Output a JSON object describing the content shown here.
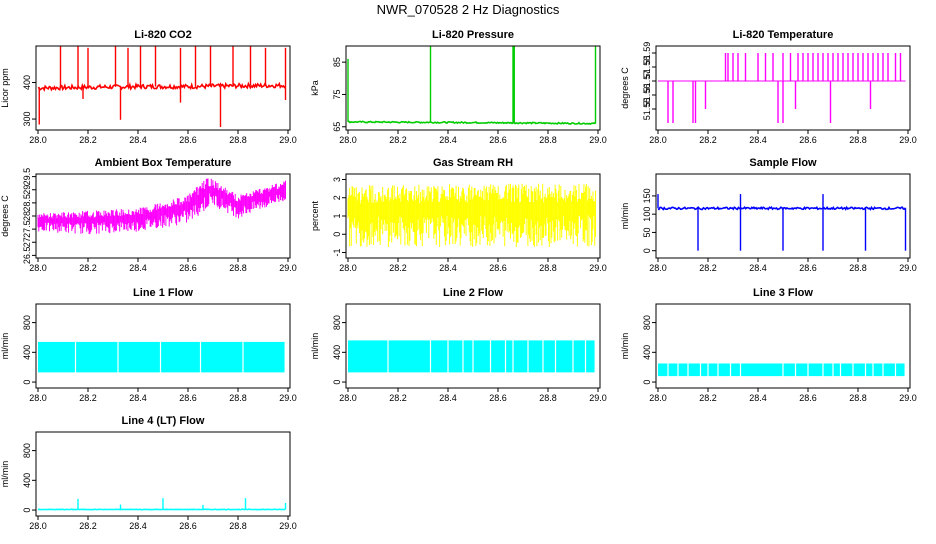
{
  "title": "NWR_070528  2 Hz Diagnostics",
  "chart_data": [
    {
      "type": "line",
      "title": "Li-820 CO2",
      "ylabel": "Licor ppm",
      "color": "#ff0000",
      "xlim": [
        28.0,
        29.0
      ],
      "ylim": [
        270,
        500
      ],
      "xticks": [
        "28.0",
        "28.2",
        "28.4",
        "28.6",
        "28.8",
        "29.0"
      ],
      "yticks": [
        300,
        400
      ],
      "baseline": [
        [
          28.0,
          385
        ],
        [
          28.2,
          387
        ],
        [
          28.4,
          389
        ],
        [
          28.6,
          389
        ],
        [
          28.8,
          391
        ],
        [
          28.99,
          392
        ]
      ],
      "noise": 6,
      "spikes": [
        [
          28.09,
          500
        ],
        [
          28.16,
          500
        ],
        [
          28.2,
          495
        ],
        [
          28.31,
          500
        ],
        [
          28.36,
          495
        ],
        [
          28.41,
          500
        ],
        [
          28.47,
          500
        ],
        [
          28.57,
          495
        ],
        [
          28.63,
          500
        ],
        [
          28.69,
          500
        ],
        [
          28.78,
          500
        ],
        [
          28.85,
          500
        ],
        [
          28.91,
          495
        ],
        [
          28.99,
          495
        ],
        [
          28.005,
          285
        ],
        [
          28.33,
          298
        ],
        [
          28.18,
          355
        ],
        [
          28.73,
          278
        ],
        [
          28.57,
          345
        ],
        [
          28.99,
          352
        ]
      ]
    },
    {
      "type": "line",
      "title": "Li-820 Pressure",
      "ylabel": "kPa",
      "color": "#00cc00",
      "xlim": [
        28.0,
        29.0
      ],
      "ylim": [
        64,
        90
      ],
      "xticks": [
        "28.0",
        "28.2",
        "28.4",
        "28.6",
        "28.8",
        "29.0"
      ],
      "yticks": [
        65,
        75,
        85
      ],
      "baseline": [
        [
          28.0,
          66.5
        ],
        [
          28.5,
          66.3
        ],
        [
          29.0,
          66.0
        ]
      ],
      "noise": 0.2,
      "spikes": [
        [
          28.0,
          86
        ],
        [
          28.33,
          90
        ],
        [
          28.66,
          90
        ],
        [
          28.665,
          90
        ],
        [
          28.99,
          90
        ]
      ]
    },
    {
      "type": "step",
      "title": "Li-820 Temperature",
      "ylabel": "degrees C",
      "color": "#ff00ff",
      "xlim": [
        28.0,
        29.0
      ],
      "ylim": [
        51.535,
        51.595
      ],
      "xticks": [
        "28.0",
        "28.2",
        "28.4",
        "28.6",
        "28.8",
        "29.0"
      ],
      "yticks": [
        51.55,
        51.56,
        51.57,
        51.58,
        51.59
      ],
      "ytickfmt": 2,
      "baseline": [
        [
          28.0,
          51.57
        ],
        [
          29.0,
          51.57
        ]
      ],
      "noise": 0,
      "spikes": [
        [
          28.04,
          51.54
        ],
        [
          28.06,
          51.54
        ],
        [
          28.14,
          51.54
        ],
        [
          28.15,
          51.54
        ],
        [
          28.19,
          51.55
        ],
        [
          28.27,
          51.59
        ],
        [
          28.28,
          51.59
        ],
        [
          28.3,
          51.59
        ],
        [
          28.32,
          51.59
        ],
        [
          28.35,
          51.59
        ],
        [
          28.4,
          51.59
        ],
        [
          28.43,
          51.59
        ],
        [
          28.46,
          51.59
        ],
        [
          28.48,
          51.54
        ],
        [
          28.5,
          51.59
        ],
        [
          28.53,
          51.59
        ],
        [
          28.55,
          51.55
        ],
        [
          28.56,
          51.59
        ],
        [
          28.58,
          51.59
        ],
        [
          28.6,
          51.59
        ],
        [
          28.62,
          51.59
        ],
        [
          28.64,
          51.59
        ],
        [
          28.66,
          51.59
        ],
        [
          28.68,
          51.59
        ],
        [
          28.7,
          51.59
        ],
        [
          28.72,
          51.59
        ],
        [
          28.74,
          51.59
        ],
        [
          28.76,
          51.59
        ],
        [
          28.78,
          51.59
        ],
        [
          28.8,
          51.59
        ],
        [
          28.82,
          51.59
        ],
        [
          28.84,
          51.59
        ],
        [
          28.85,
          51.55
        ],
        [
          28.86,
          51.59
        ],
        [
          28.88,
          51.59
        ],
        [
          28.9,
          51.59
        ],
        [
          28.92,
          51.59
        ],
        [
          28.95,
          51.59
        ],
        [
          28.97,
          51.59
        ],
        [
          28.5,
          51.54
        ],
        [
          28.69,
          51.54
        ]
      ]
    },
    {
      "type": "area",
      "title": "Ambient Box Temperature",
      "ylabel": "degrees C",
      "color": "#ff00ff",
      "xlim": [
        28.0,
        29.0
      ],
      "ylim": [
        26.4,
        29.6
      ],
      "xticks": [
        "28.0",
        "28.2",
        "28.4",
        "28.6",
        "28.8",
        "29.0"
      ],
      "yticks": [
        26.5,
        27.0,
        27.5,
        28.0,
        28.5,
        29.0,
        29.5
      ],
      "low": [
        [
          28.0,
          27.4
        ],
        [
          28.2,
          27.3
        ],
        [
          28.4,
          27.4
        ],
        [
          28.6,
          27.7
        ],
        [
          28.7,
          28.4
        ],
        [
          28.8,
          27.9
        ],
        [
          29.0,
          28.6
        ]
      ],
      "high": [
        [
          28.0,
          28.1
        ],
        [
          28.2,
          28.2
        ],
        [
          28.4,
          28.3
        ],
        [
          28.6,
          28.8
        ],
        [
          28.68,
          29.5
        ],
        [
          28.8,
          28.8
        ],
        [
          29.0,
          29.4
        ]
      ]
    },
    {
      "type": "area",
      "title": "Gas Stream RH",
      "ylabel": "percent",
      "color": "#ffff00",
      "xlim": [
        28.0,
        29.0
      ],
      "ylim": [
        -1.3,
        3.3
      ],
      "xticks": [
        "28.0",
        "28.2",
        "28.4",
        "28.6",
        "28.8",
        "29.0"
      ],
      "yticks": [
        -1,
        0,
        1,
        2,
        3
      ],
      "low": [
        [
          28.0,
          -0.7
        ],
        [
          29.0,
          -0.7
        ]
      ],
      "high": [
        [
          28.0,
          2.7
        ],
        [
          29.0,
          2.8
        ]
      ]
    },
    {
      "type": "line",
      "title": "Sample Flow",
      "ylabel": "ml/min",
      "color": "#0000ff",
      "xlim": [
        28.0,
        29.0
      ],
      "ylim": [
        -20,
        210
      ],
      "xticks": [
        "28.0",
        "28.2",
        "28.4",
        "28.6",
        "28.8",
        "29.0"
      ],
      "yticks": [
        0,
        50,
        100,
        150
      ],
      "baseline": [
        [
          28.0,
          116
        ],
        [
          29.0,
          116
        ]
      ],
      "noise": 3,
      "spikes": [
        [
          28.0,
          155
        ],
        [
          28.33,
          155
        ],
        [
          28.66,
          155
        ],
        [
          28.16,
          0
        ],
        [
          28.33,
          0
        ],
        [
          28.5,
          0
        ],
        [
          28.66,
          0
        ],
        [
          28.83,
          0
        ],
        [
          28.99,
          0
        ]
      ]
    },
    {
      "type": "band",
      "title": "Line 1 Flow",
      "ylabel": "ml/min",
      "color": "#00ffff",
      "xlim": [
        28.0,
        29.0
      ],
      "ylim": [
        -80,
        1050
      ],
      "xticks": [
        "28.0",
        "28.2",
        "28.4",
        "28.6",
        "28.8",
        "29.0"
      ],
      "yticks": [
        0,
        400,
        800
      ],
      "range": [
        130,
        540
      ],
      "gaps": [
        28.15,
        28.32,
        28.49,
        28.65,
        28.82
      ]
    },
    {
      "type": "band",
      "title": "Line 2 Flow",
      "ylabel": "ml/min",
      "color": "#00ffff",
      "xlim": [
        28.0,
        29.0
      ],
      "ylim": [
        -80,
        1050
      ],
      "xticks": [
        "28.0",
        "28.2",
        "28.4",
        "28.6",
        "28.8",
        "29.0"
      ],
      "yticks": [
        0,
        400,
        800
      ],
      "range": [
        130,
        560
      ],
      "gaps": [
        28.16,
        28.33,
        28.4,
        28.46,
        28.5,
        28.57,
        28.63,
        28.66,
        28.72,
        28.78,
        28.83,
        28.9,
        28.95
      ]
    },
    {
      "type": "band",
      "title": "Line 3 Flow",
      "ylabel": "ml/min",
      "color": "#00ffff",
      "xlim": [
        28.0,
        29.0
      ],
      "ylim": [
        -80,
        1050
      ],
      "xticks": [
        "28.0",
        "28.2",
        "28.4",
        "28.6",
        "28.8",
        "29.0"
      ],
      "yticks": [
        0,
        400,
        800
      ],
      "range": [
        80,
        250
      ],
      "gaps": [
        28.04,
        28.08,
        28.12,
        28.17,
        28.2,
        28.24,
        28.29,
        28.33,
        28.5,
        28.55,
        28.6,
        28.66,
        28.7,
        28.73,
        28.78,
        28.83,
        28.86,
        28.9,
        28.95
      ]
    },
    {
      "type": "line",
      "title": "Line 4 (LT) Flow",
      "ylabel": "ml/min",
      "color": "#00ffff",
      "xlim": [
        28.0,
        29.0
      ],
      "ylim": [
        -80,
        1050
      ],
      "xticks": [
        "28.0",
        "28.2",
        "28.4",
        "28.6",
        "28.8",
        "29.0"
      ],
      "yticks": [
        0,
        400,
        800
      ],
      "baseline": [
        [
          28.0,
          8
        ],
        [
          29.0,
          8
        ]
      ],
      "noise": 3,
      "spikes": [
        [
          28.16,
          150
        ],
        [
          28.33,
          75
        ],
        [
          28.5,
          160
        ],
        [
          28.66,
          70
        ],
        [
          28.83,
          160
        ],
        [
          28.99,
          95
        ]
      ]
    }
  ]
}
